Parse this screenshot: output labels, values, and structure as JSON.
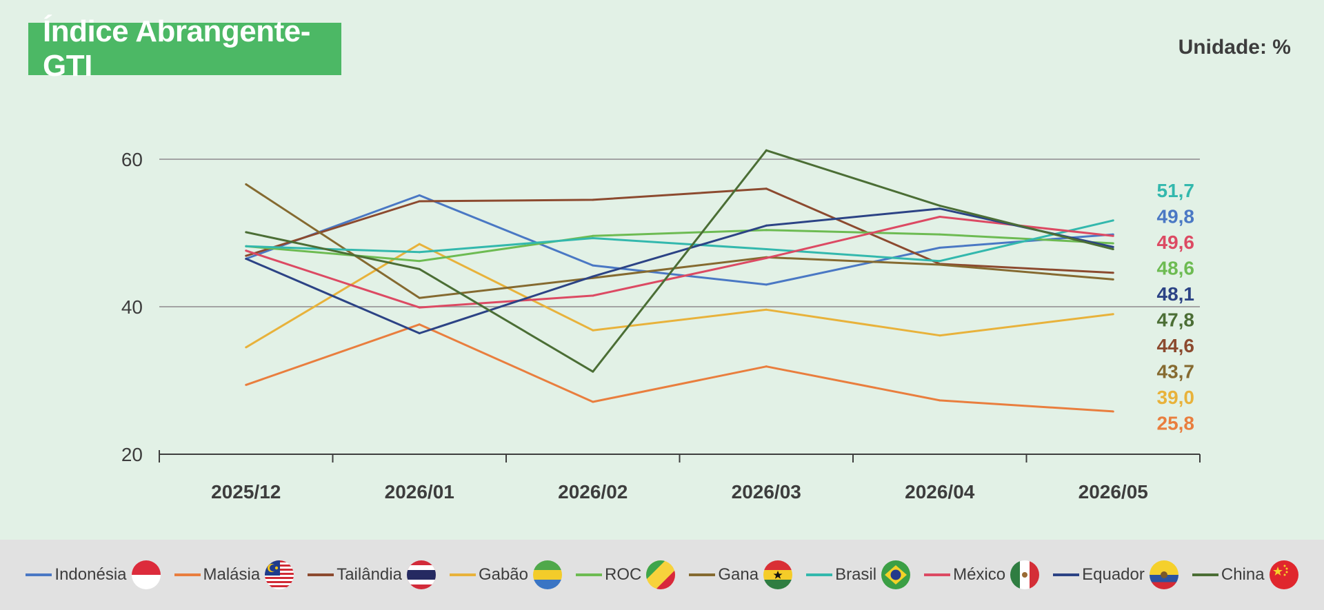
{
  "header": {
    "title": "Índice Abrangente-GTI",
    "unit": "Unidade: %"
  },
  "chart_data": {
    "type": "line",
    "x": [
      "2025/12",
      "2026/01",
      "2026/02",
      "2026/03",
      "2026/04",
      "2026/05"
    ],
    "ylim": [
      20,
      60
    ],
    "yticks": [
      20,
      40,
      60
    ],
    "grid": true,
    "legend_position": "bottom",
    "series": [
      {
        "name": "Indonésia",
        "color": "#4a78c4",
        "values": [
          46.5,
          55.1,
          45.6,
          43.0,
          48.0,
          49.8
        ],
        "end_label": "49,8"
      },
      {
        "name": "Malásia",
        "color": "#e97e3e",
        "values": [
          29.4,
          37.6,
          27.1,
          31.9,
          27.3,
          25.8
        ],
        "end_label": "25,8"
      },
      {
        "name": "Tailândia",
        "color": "#8c4a2f",
        "values": [
          46.9,
          54.3,
          54.5,
          56.0,
          45.8,
          44.6
        ],
        "end_label": "44,6"
      },
      {
        "name": "Gabão",
        "color": "#e8b23b",
        "values": [
          34.5,
          48.5,
          36.8,
          39.6,
          36.1,
          39.0
        ],
        "end_label": "39,0"
      },
      {
        "name": "ROC",
        "color": "#6dbb52",
        "values": [
          48.2,
          46.2,
          49.6,
          50.4,
          49.8,
          48.6
        ],
        "end_label": "48,6"
      },
      {
        "name": "Gana",
        "color": "#856a30",
        "values": [
          56.6,
          41.2,
          43.9,
          46.7,
          45.7,
          43.7
        ],
        "end_label": "43,7"
      },
      {
        "name": "Brasil",
        "color": "#33b8ad",
        "values": [
          48.2,
          47.4,
          49.3,
          47.8,
          46.2,
          51.7
        ],
        "end_label": "51,7"
      },
      {
        "name": "México",
        "color": "#dc4a63",
        "values": [
          47.6,
          39.9,
          41.5,
          46.6,
          52.2,
          49.6
        ],
        "end_label": "49,6"
      },
      {
        "name": "Equador",
        "color": "#2c4385",
        "values": [
          46.5,
          36.4,
          44.1,
          51.0,
          53.3,
          48.1
        ],
        "end_label": "48,1"
      },
      {
        "name": "China",
        "color": "#4b6e35",
        "values": [
          50.1,
          45.1,
          31.2,
          61.2,
          53.7,
          47.8
        ],
        "end_label": "47,8"
      }
    ]
  },
  "legend": {
    "flags": [
      "indonesia-flag-icon",
      "malaysia-flag-icon",
      "thailand-flag-icon",
      "gabon-flag-icon",
      "congo-flag-icon",
      "ghana-flag-icon",
      "brazil-flag-icon",
      "mexico-flag-icon",
      "ecuador-flag-icon",
      "china-flag-icon"
    ]
  }
}
